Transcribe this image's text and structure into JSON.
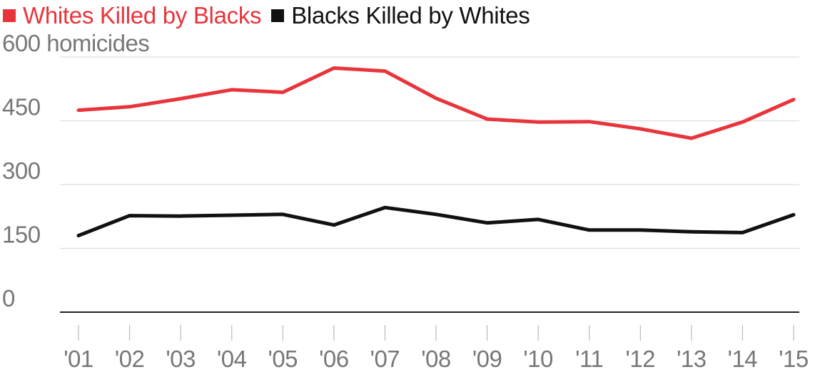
{
  "chart_data": {
    "type": "line",
    "x": [
      "'01",
      "'02",
      "'03",
      "'04",
      "'05",
      "'06",
      "'07",
      "'08",
      "'09",
      "'10",
      "'11",
      "'12",
      "'13",
      "'14",
      "'15"
    ],
    "series": [
      {
        "name": "Whites Killed by Blacks",
        "color": "#e8343b",
        "values": [
          475,
          483,
          502,
          523,
          517,
          574,
          567,
          503,
          454,
          447,
          448,
          431,
          409,
          447,
          500
        ]
      },
      {
        "name": "Blacks Killed by Whites",
        "color": "#111111",
        "values": [
          180,
          227,
          226,
          228,
          230,
          205,
          246,
          230,
          210,
          218,
          193,
          193,
          189,
          187,
          229
        ]
      }
    ],
    "y_ticks": [
      {
        "value": 0,
        "label": "0"
      },
      {
        "value": 150,
        "label": "150"
      },
      {
        "value": 300,
        "label": "300"
      },
      {
        "value": 450,
        "label": "450"
      },
      {
        "value": 600,
        "label": "600 homicides"
      }
    ],
    "ylim": [
      0,
      600
    ],
    "grid": true,
    "legend_position": "top-left"
  }
}
